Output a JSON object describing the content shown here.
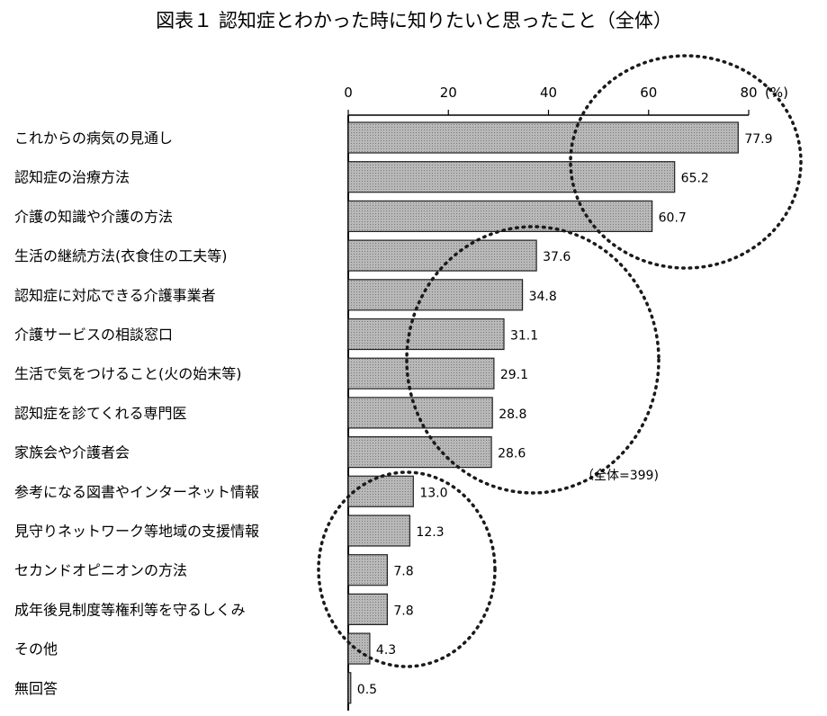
{
  "chart_data": {
    "type": "bar",
    "orientation": "horizontal",
    "title": "図表１ 認知症とわかった時に知りたいと思ったこと（全体）",
    "categories": [
      "これからの病気の見通し",
      "認知症の治療方法",
      "介護の知識や介護の方法",
      "生活の継続方法(衣食住の工夫等)",
      "認知症に対応できる介護事業者",
      "介護サービスの相談窓口",
      "生活で気をつけること(火の始末等)",
      "認知症を診てくれる専門医",
      "家族会や介護者会",
      "参考になる図書やインターネット情報",
      "見守りネットワーク等地域の支援情報",
      "セカンドオピニオンの方法",
      "成年後見制度等権利等を守るしくみ",
      "その他",
      "無回答"
    ],
    "values": [
      77.9,
      65.2,
      60.7,
      37.6,
      34.8,
      31.1,
      29.1,
      28.8,
      28.6,
      13.0,
      12.3,
      7.8,
      7.8,
      4.3,
      0.5
    ],
    "value_labels": [
      "77.9",
      "65.2",
      "60.7",
      "37.6",
      "34.8",
      "31.1",
      "29.1",
      "28.8",
      "28.6",
      "13.0",
      "12.3",
      "7.8",
      "7.8",
      "4.3",
      "0.5"
    ],
    "x_ticks": [
      "0",
      "20",
      "40",
      "60",
      "80"
    ],
    "x_tick_values": [
      0,
      20,
      40,
      60,
      80
    ],
    "unit": "(%)",
    "xlim": [
      0,
      80
    ],
    "note": "（全体=399)",
    "grid": false,
    "bar_color": "#b8b8b8",
    "bar_stroke": "#222222"
  }
}
